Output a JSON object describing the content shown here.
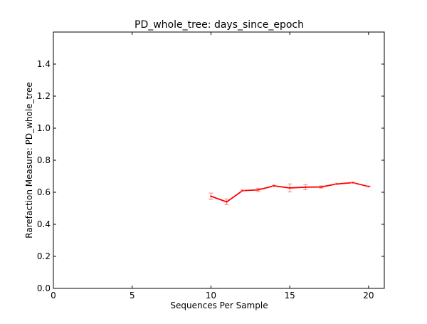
{
  "chart_data": {
    "type": "line",
    "title": "PD_whole_tree: days_since_epoch",
    "xlabel": "Sequences Per Sample",
    "ylabel": "Rarefaction Measure: PD_whole_tree",
    "xlim": [
      0,
      21
    ],
    "ylim": [
      0.0,
      1.6
    ],
    "xticks": [
      0,
      5,
      10,
      15,
      20
    ],
    "xtick_labels": [
      "0",
      "5",
      "10",
      "15",
      "20"
    ],
    "yticks": [
      0.0,
      0.2,
      0.4,
      0.6,
      0.8,
      1.0,
      1.2,
      1.4
    ],
    "ytick_labels": [
      "0.0",
      "0.2",
      "0.4",
      "0.6",
      "0.8",
      "1.0",
      "1.2",
      "1.4"
    ],
    "grid": false,
    "series": [
      {
        "color": "#ff0000",
        "errorbar_color": "#ff8080",
        "x": [
          10,
          11,
          12,
          13,
          14,
          15,
          16,
          17,
          18,
          19,
          20
        ],
        "y": [
          0.575,
          0.54,
          0.61,
          0.615,
          0.64,
          0.627,
          0.632,
          0.633,
          0.652,
          0.66,
          0.636
        ],
        "yerr": [
          0.02,
          0.018,
          0.003,
          0.01,
          0.004,
          0.025,
          0.016,
          0.007,
          0.004,
          0.003,
          0.003
        ]
      }
    ]
  }
}
